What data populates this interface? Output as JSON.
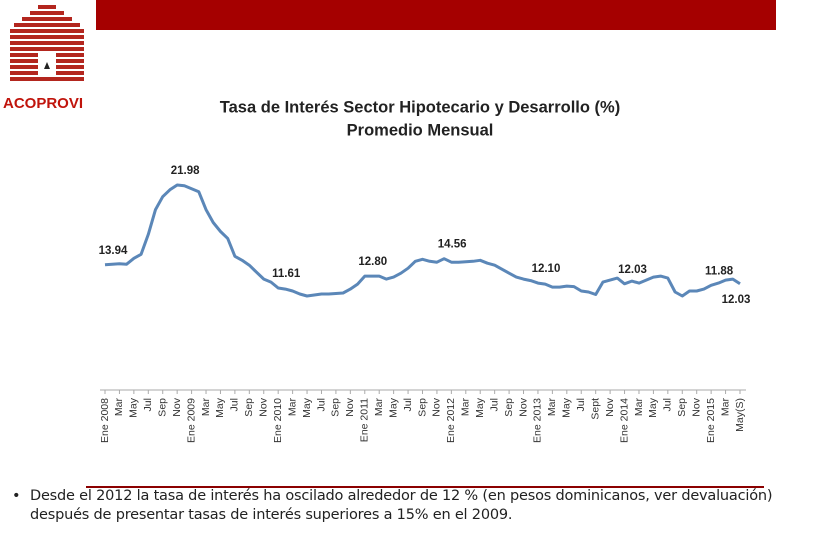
{
  "logo": {
    "text": "ACOPROVI"
  },
  "chart_data": {
    "type": "line",
    "title": "Tasa de Interés Sector Hipotecario y Desarrollo (%)",
    "subtitle": "Promedio Mensual",
    "categories": [
      "Ene 2008",
      null,
      "Mar",
      null,
      "May",
      null,
      "Jul",
      null,
      "Sep",
      null,
      "Nov",
      null,
      "Ene 2009",
      null,
      "Mar",
      null,
      "May",
      null,
      "Jul",
      null,
      "Sep",
      null,
      "Nov",
      null,
      "Ene 2010",
      null,
      "Mar",
      null,
      "May",
      null,
      "Jul",
      null,
      "Sep",
      null,
      "Nov",
      null,
      "Ene 2011",
      null,
      "Mar",
      null,
      "May",
      null,
      "Jul",
      null,
      "Sep",
      null,
      "Nov",
      null,
      "Ene 2012",
      null,
      "Mar",
      null,
      "May",
      null,
      "Jul",
      null,
      "Sep",
      null,
      "Nov",
      null,
      "Ene 2013",
      null,
      "Mar",
      null,
      "May",
      null,
      "Jul",
      null,
      "Sept",
      null,
      "Nov",
      null,
      "Ene 2014",
      null,
      "Mar",
      null,
      "May",
      null,
      "Jul",
      null,
      "Sep",
      null,
      "Nov",
      null,
      "Ene 2015",
      null,
      "Mar",
      null,
      "May(S)"
    ],
    "series": [
      {
        "name": "Tasa",
        "color": "#5b87b8",
        "values": [
          13.94,
          14.0,
          14.05,
          14.0,
          14.6,
          15.0,
          17.0,
          19.5,
          20.8,
          21.5,
          21.98,
          21.9,
          21.6,
          21.3,
          19.5,
          18.2,
          17.3,
          16.6,
          14.8,
          14.4,
          13.9,
          13.2,
          12.5,
          12.2,
          11.61,
          11.5,
          11.3,
          11.0,
          10.8,
          10.9,
          11.0,
          11.0,
          11.05,
          11.1,
          11.5,
          12.0,
          12.8,
          12.8,
          12.8,
          12.5,
          12.7,
          13.1,
          13.6,
          14.3,
          14.5,
          14.3,
          14.2,
          14.56,
          14.2,
          14.2,
          14.25,
          14.3,
          14.4,
          14.1,
          13.9,
          13.5,
          13.1,
          12.7,
          12.5,
          12.35,
          12.1,
          12.0,
          11.7,
          11.7,
          11.8,
          11.75,
          11.3,
          11.2,
          10.95,
          12.2,
          12.4,
          12.6,
          12.03,
          12.3,
          12.1,
          12.4,
          12.7,
          12.8,
          12.6,
          11.2,
          10.8,
          11.3,
          11.3,
          11.5,
          11.88,
          12.1,
          12.4,
          12.5,
          12.03
        ],
        "value_labels": [
          "13.94",
          null,
          null,
          null,
          null,
          null,
          null,
          null,
          null,
          null,
          "21.98",
          null,
          null,
          null,
          null,
          null,
          null,
          null,
          null,
          null,
          null,
          null,
          null,
          null,
          "11.61",
          null,
          null,
          null,
          null,
          null,
          null,
          null,
          null,
          null,
          null,
          null,
          "12.80",
          null,
          null,
          null,
          null,
          null,
          null,
          null,
          null,
          null,
          null,
          "14.56",
          null,
          null,
          null,
          null,
          null,
          null,
          null,
          null,
          null,
          null,
          null,
          null,
          "12.10",
          null,
          null,
          null,
          null,
          null,
          null,
          null,
          null,
          null,
          null,
          null,
          "12.03",
          null,
          null,
          null,
          null,
          null,
          null,
          null,
          null,
          null,
          null,
          null,
          "11.88",
          null,
          null,
          null,
          "12.03"
        ]
      }
    ]
  },
  "bullet": "Desde el 2012 la tasa de interés ha oscilado alrededor de 12 % (en pesos dominicanos, ver devaluación) después de  presentar tasas de interés superiores a 15% en el 2009."
}
